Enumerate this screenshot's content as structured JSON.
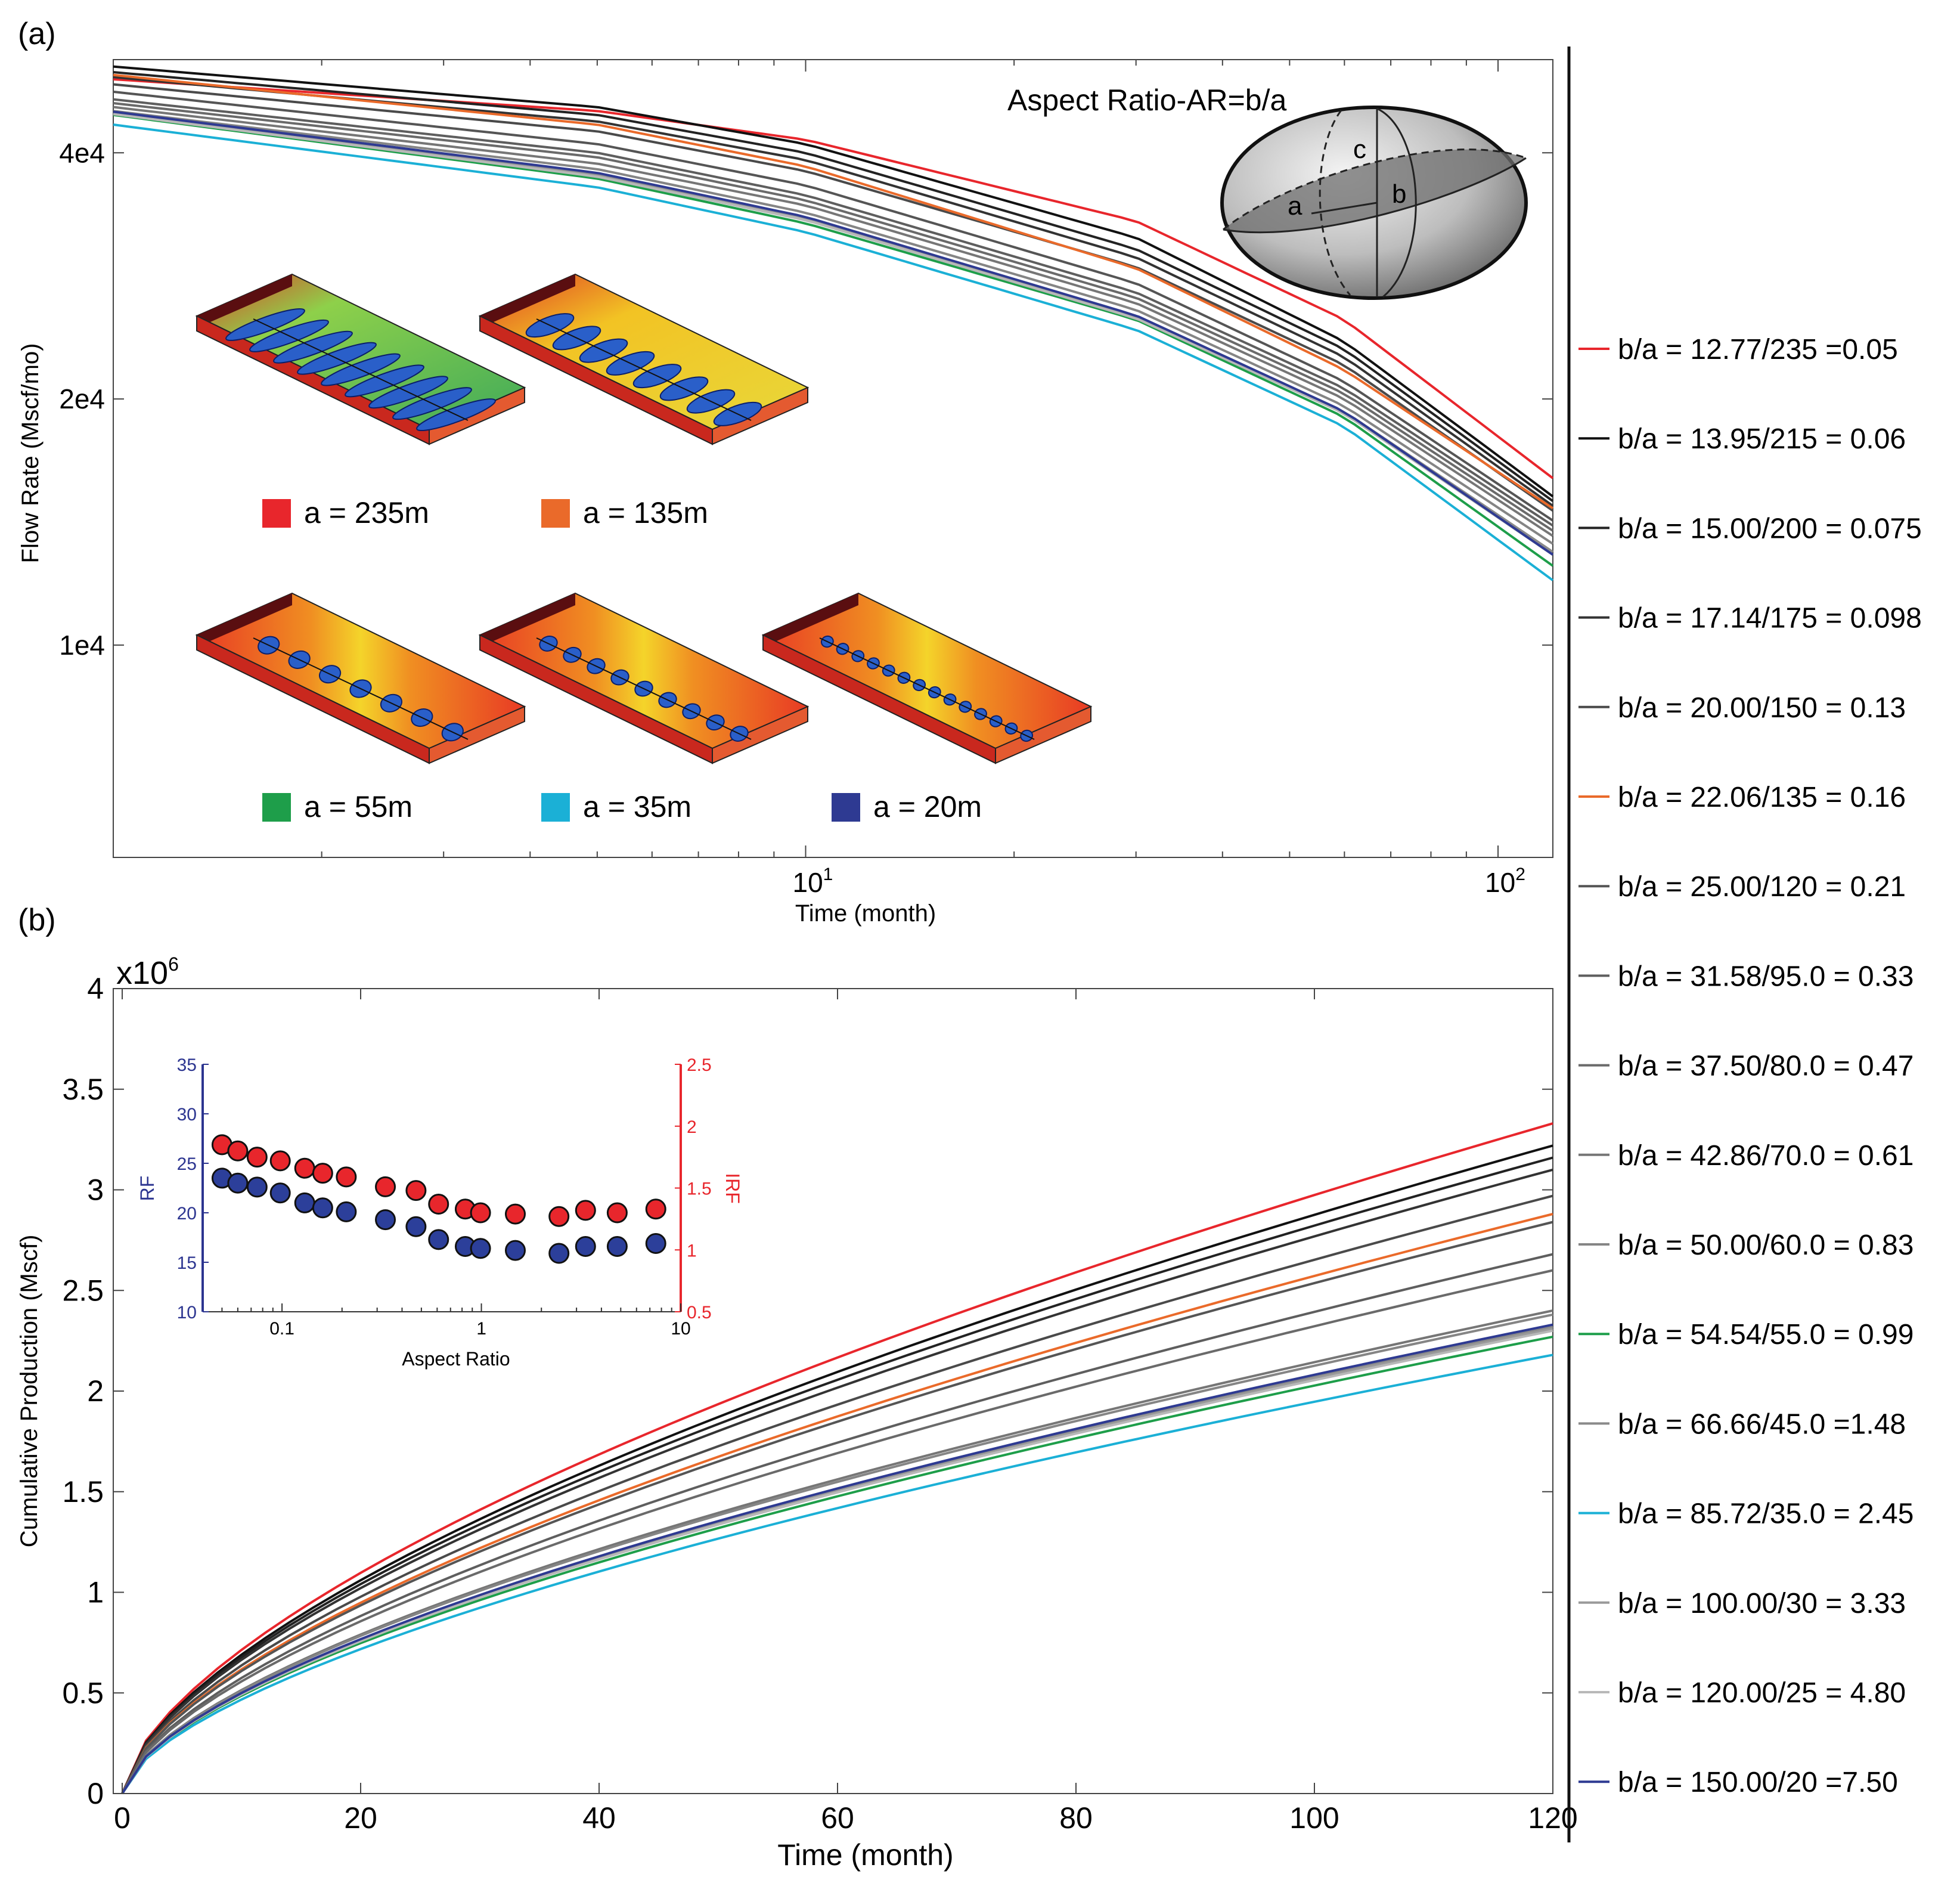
{
  "colors": {
    "red": "#e8262c",
    "black": "#111111",
    "dark": "#333333",
    "dark2": "#4a4a4a",
    "mid": "#5e5e5e",
    "orange": "#ea6a2a",
    "gray": "#767676",
    "gray2": "#8a8a8a",
    "gray3": "#9a9a9a",
    "green": "#1e9e4a",
    "cyan": "#1bb0d6",
    "lightgray": "#b8b8b8",
    "navy": "#2e3a92",
    "rf": "#2c3590",
    "irf": "#e8262c"
  },
  "panels": {
    "a_label": "(a)",
    "b_label": "(b)"
  },
  "legend": [
    {
      "label": "b/a = 12.77/235 =0.05",
      "color": "#e8262c"
    },
    {
      "label": "b/a = 13.95/215 = 0.06",
      "color": "#111111"
    },
    {
      "label": "b/a = 15.00/200 = 0.075",
      "color": "#222222"
    },
    {
      "label": "b/a = 17.14/175 = 0.098",
      "color": "#333333"
    },
    {
      "label": "b/a = 20.00/150 = 0.13",
      "color": "#4a4a4a"
    },
    {
      "label": "b/a = 22.06/135 = 0.16",
      "color": "#ea6a2a"
    },
    {
      "label": "b/a = 25.00/120 = 0.21",
      "color": "#555555"
    },
    {
      "label": "b/a = 31.58/95.0 = 0.33",
      "color": "#5e5e5e"
    },
    {
      "label": "b/a = 37.50/80.0 = 0.47",
      "color": "#6a6a6a"
    },
    {
      "label": "b/a = 42.86/70.0 = 0.61",
      "color": "#767676"
    },
    {
      "label": "b/a = 50.00/60.0 = 0.83",
      "color": "#858585"
    },
    {
      "label": "b/a = 54.54/55.0 = 0.99",
      "color": "#1e9e4a"
    },
    {
      "label": "b/a = 66.66/45.0 =1.48",
      "color": "#8a8a8a"
    },
    {
      "label": "b/a = 85.72/35.0 = 2.45",
      "color": "#1bb0d6"
    },
    {
      "label": "b/a = 100.00/30 = 3.33",
      "color": "#9a9a9a"
    },
    {
      "label": "b/a = 120.00/25 = 4.80",
      "color": "#b8b8b8"
    },
    {
      "label": "b/a = 150.00/20 =7.50",
      "color": "#2e3a92"
    }
  ],
  "chart_data": [
    {
      "type": "line",
      "panel": "(a)",
      "xlabel": "Time (month)",
      "ylabel": "Flow Rate (Mscf/mo)",
      "xscale": "log",
      "yscale": "log",
      "xlim": [
        1,
        120
      ],
      "ylim": [
        5500,
        52000
      ],
      "xticks": [
        {
          "v": 10,
          "base": "10",
          "exp": "1"
        },
        {
          "v": 100,
          "base": "10",
          "exp": "2"
        }
      ],
      "yticks": [
        {
          "v": 10000,
          "label": "1e4"
        },
        {
          "v": 20000,
          "label": "2e4"
        },
        {
          "v": 40000,
          "label": "4e4"
        }
      ],
      "annotation": "Aspect Ratio-AR=b/a",
      "ellipsoid_labels": {
        "a": "a",
        "b": "b",
        "c": "c"
      },
      "series_end_values": {
        "x": [
          1,
          5,
          10,
          30,
          60,
          120
        ],
        "note": "values follow legend order"
      },
      "series": [
        {
          "legend": 0,
          "values": [
            49200,
            45000,
            41500,
            33000,
            25000,
            16000
          ]
        },
        {
          "legend": 1,
          "values": [
            51000,
            45500,
            41000,
            31500,
            23500,
            15200
          ]
        },
        {
          "legend": 2,
          "values": [
            50200,
            44500,
            40000,
            30500,
            23000,
            15000
          ]
        },
        {
          "legend": 3,
          "values": [
            49500,
            43700,
            39200,
            29800,
            22500,
            14800
          ]
        },
        {
          "legend": 4,
          "values": [
            48500,
            42500,
            38000,
            29000,
            22000,
            14600
          ]
        },
        {
          "legend": 5,
          "values": [
            49800,
            43300,
            38500,
            28900,
            21700,
            14700
          ]
        },
        {
          "legend": 6,
          "values": [
            47500,
            41000,
            36500,
            27700,
            21000,
            14200
          ]
        },
        {
          "legend": 7,
          "values": [
            46500,
            40000,
            35500,
            27000,
            20600,
            14000
          ]
        },
        {
          "legend": 8,
          "values": [
            46000,
            39500,
            35000,
            26600,
            20300,
            13800
          ]
        },
        {
          "legend": 9,
          "values": [
            45500,
            38800,
            34500,
            26200,
            20000,
            13600
          ]
        },
        {
          "legend": 10,
          "values": [
            45000,
            38200,
            33800,
            25700,
            19600,
            13300
          ]
        },
        {
          "legend": 11,
          "values": [
            44500,
            37200,
            32800,
            25000,
            19000,
            12500
          ]
        },
        {
          "legend": 12,
          "values": [
            44800,
            37600,
            33200,
            25300,
            19300,
            13000
          ]
        },
        {
          "legend": 13,
          "values": [
            43300,
            36300,
            32000,
            24300,
            18500,
            12000
          ]
        },
        {
          "legend": 14,
          "values": [
            44700,
            37500,
            33200,
            25200,
            19200,
            12900
          ]
        },
        {
          "legend": 15,
          "values": [
            44600,
            37400,
            33100,
            25100,
            19200,
            12900
          ]
        },
        {
          "legend": 16,
          "values": [
            44900,
            37800,
            33400,
            25300,
            19300,
            12900
          ]
        }
      ],
      "insets": [
        {
          "label": "a = 235m",
          "color": "#e8262c"
        },
        {
          "label": "a = 135m",
          "color": "#ea6a2a"
        },
        {
          "label": "a = 55m",
          "color": "#1e9e4a"
        },
        {
          "label": "a = 35m",
          "color": "#1bb0d6"
        },
        {
          "label": "a = 20m",
          "color": "#2e3a92"
        }
      ]
    },
    {
      "type": "line",
      "panel": "(b)",
      "xlabel": "Time (month)",
      "ylabel": "Cumulative Production (Mscf)",
      "multiplier_base": "x10",
      "multiplier_exp": "6",
      "xlim": [
        0,
        120
      ],
      "ylim": [
        0,
        4
      ],
      "xticks": [
        0,
        20,
        40,
        60,
        80,
        100,
        120
      ],
      "yticks": [
        0,
        0.5,
        1,
        1.5,
        2,
        2.5,
        3,
        3.5,
        4
      ],
      "final_values_at_120": [
        3.33,
        3.22,
        3.16,
        3.1,
        2.97,
        2.88,
        2.84,
        2.68,
        2.6,
        2.4,
        2.38,
        2.27,
        2.32,
        2.18,
        2.31,
        2.3,
        2.33
      ]
    },
    {
      "type": "scatter",
      "panel": "(b) inset",
      "xlabel": "Aspect Ratio",
      "ylabel_left": "RF",
      "ylabel_right": "IRF",
      "xscale": "log",
      "xlim": [
        0.04,
        10
      ],
      "xticks": [
        {
          "v": 0.1,
          "label": "0.1"
        },
        {
          "v": 1,
          "label": "1"
        },
        {
          "v": 10,
          "label": "10"
        }
      ],
      "ylim_left": [
        10,
        35
      ],
      "yticks_left": [
        10,
        15,
        20,
        25,
        30,
        35
      ],
      "ylim_right": [
        0.5,
        2.5
      ],
      "yticks_right": [
        0.5,
        1,
        1.5,
        2,
        2.5
      ],
      "x": [
        0.05,
        0.06,
        0.075,
        0.098,
        0.13,
        0.16,
        0.21,
        0.33,
        0.47,
        0.61,
        0.83,
        0.99,
        1.48,
        2.45,
        3.33,
        4.8,
        7.5
      ],
      "RF": [
        23.5,
        23.0,
        22.6,
        22.0,
        21.0,
        20.5,
        20.1,
        19.3,
        18.6,
        17.3,
        16.6,
        16.4,
        16.2,
        15.9,
        16.6,
        16.6,
        16.9
      ],
      "IRF": [
        1.85,
        1.8,
        1.75,
        1.72,
        1.66,
        1.62,
        1.59,
        1.51,
        1.48,
        1.37,
        1.33,
        1.3,
        1.29,
        1.27,
        1.32,
        1.3,
        1.33
      ]
    }
  ]
}
